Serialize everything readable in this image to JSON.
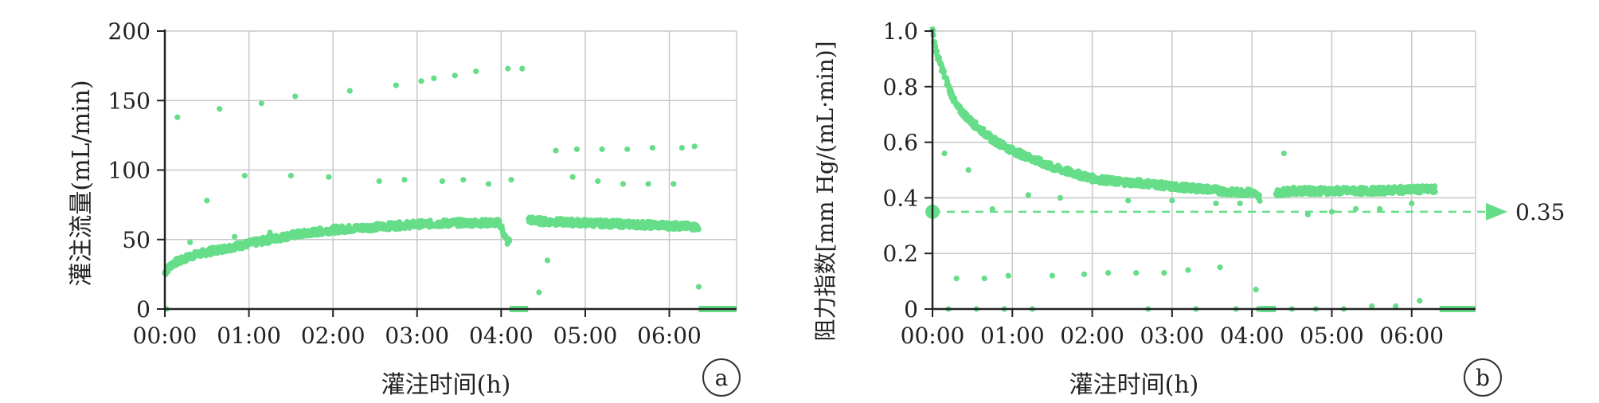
{
  "chart_data": [
    {
      "type": "scatter",
      "panel_label": "a",
      "title": "",
      "xlabel": "灌注时间(h)",
      "ylabel": "灌注流量(mL/min)",
      "xlim": [
        0,
        6.8
      ],
      "ylim": [
        0,
        200
      ],
      "xticks": [
        "00:00",
        "01:00",
        "02:00",
        "03:00",
        "04:00",
        "05:00",
        "06:00"
      ],
      "yticks": [
        "0",
        "50",
        "100",
        "150",
        "200"
      ],
      "grid": true,
      "color": "#66dd88",
      "series": [
        {
          "trend_x": [
            0,
            0.05,
            0.1,
            0.2,
            0.3,
            0.5,
            0.75,
            1.0,
            1.25,
            1.5,
            1.75,
            2.0,
            2.25,
            2.5,
            2.75,
            3.0,
            3.25,
            3.5,
            3.75,
            3.98,
            4.02,
            4.06,
            4.08,
            4.3,
            4.35,
            4.5,
            5.0,
            5.5,
            6.0,
            6.35
          ],
          "trend_y": [
            26,
            30,
            33,
            35,
            38,
            41,
            44,
            47,
            50,
            53,
            55,
            57,
            58,
            59,
            60,
            61,
            61.5,
            62,
            62,
            62,
            56,
            50,
            48,
            65,
            64,
            63,
            62,
            61,
            60,
            59
          ],
          "zero_segments": [
            [
              4.1,
              4.32
            ],
            [
              6.35,
              6.8
            ]
          ],
          "scatter_x": [
            0.02,
            0.15,
            0.3,
            0.5,
            0.65,
            0.83,
            0.95,
            1.15,
            1.25,
            1.5,
            1.55,
            1.85,
            1.95,
            2.2,
            2.45,
            2.55,
            2.75,
            2.85,
            3.05,
            3.2,
            3.3,
            3.45,
            3.55,
            3.7,
            3.85,
            4.08,
            4.12,
            4.25,
            4.45,
            4.55,
            4.65,
            4.85,
            4.9,
            5.15,
            5.2,
            5.45,
            5.5,
            5.75,
            5.8,
            6.05,
            6.15,
            6.3,
            6.35
          ],
          "scatter_y": [
            0,
            138,
            48,
            78,
            144,
            52,
            96,
            148,
            55,
            96,
            153,
            58,
            95,
            157,
            59,
            92,
            161,
            93,
            164,
            166,
            92,
            168,
            93,
            171,
            90,
            173,
            93,
            173,
            12,
            35,
            114,
            95,
            115,
            92,
            115,
            90,
            115,
            90,
            116,
            90,
            116,
            117,
            16
          ]
        }
      ]
    },
    {
      "type": "scatter",
      "panel_label": "b",
      "title": "",
      "xlabel": "灌注时间(h)",
      "ylabel": "阻力指数[mm Hg/(mL·min)]",
      "xlim": [
        0,
        6.8
      ],
      "ylim": [
        0,
        1.0
      ],
      "xticks": [
        "00:00",
        "01:00",
        "02:00",
        "03:00",
        "04:00",
        "05:00",
        "06:00"
      ],
      "yticks": [
        "0",
        "0.2",
        "0.4",
        "0.6",
        "0.8",
        "1.0"
      ],
      "grid": true,
      "color": "#66dd88",
      "reference_line": {
        "y": 0.35,
        "label": "0.35"
      },
      "series": [
        {
          "trend_x": [
            0,
            0.05,
            0.1,
            0.2,
            0.3,
            0.5,
            0.75,
            1.0,
            1.25,
            1.5,
            1.75,
            2.0,
            2.25,
            2.5,
            2.75,
            3.0,
            3.25,
            3.5,
            3.75,
            4.0,
            4.1,
            4.35,
            4.5,
            5.0,
            5.5,
            6.0,
            6.3
          ],
          "trend_y": [
            1.0,
            0.92,
            0.88,
            0.8,
            0.73,
            0.67,
            0.61,
            0.57,
            0.54,
            0.51,
            0.49,
            0.47,
            0.46,
            0.455,
            0.45,
            0.44,
            0.435,
            0.43,
            0.42,
            0.42,
            0.4,
            0.42,
            0.425,
            0.425,
            0.425,
            0.43,
            0.43
          ],
          "zero_segments": [
            [
              4.1,
              4.3
            ],
            [
              6.35,
              6.8
            ]
          ],
          "scatter_x": [
            0.15,
            0.2,
            0.3,
            0.45,
            0.55,
            0.65,
            0.75,
            0.9,
            0.95,
            1.2,
            1.25,
            1.5,
            1.6,
            1.9,
            2.2,
            2.45,
            2.55,
            2.7,
            2.9,
            3.0,
            3.2,
            3.3,
            3.55,
            3.6,
            3.8,
            3.85,
            4.05,
            4.08,
            4.4,
            4.5,
            4.7,
            4.8,
            5.0,
            5.15,
            5.3,
            5.5,
            5.6,
            5.8,
            6.0,
            6.1
          ],
          "scatter_y": [
            0.56,
            0.0,
            0.11,
            0.5,
            0.0,
            0.11,
            0.36,
            0.0,
            0.12,
            0.41,
            0.0,
            0.12,
            0.4,
            0.125,
            0.13,
            0.39,
            0.13,
            0.0,
            0.13,
            0.39,
            0.14,
            0.0,
            0.38,
            0.15,
            0.0,
            0.38,
            0.07,
            0.0,
            0.56,
            0.0,
            0.34,
            0.0,
            0.35,
            0.0,
            0.36,
            0.01,
            0.36,
            0.01,
            0.38,
            0.03
          ]
        }
      ]
    }
  ]
}
